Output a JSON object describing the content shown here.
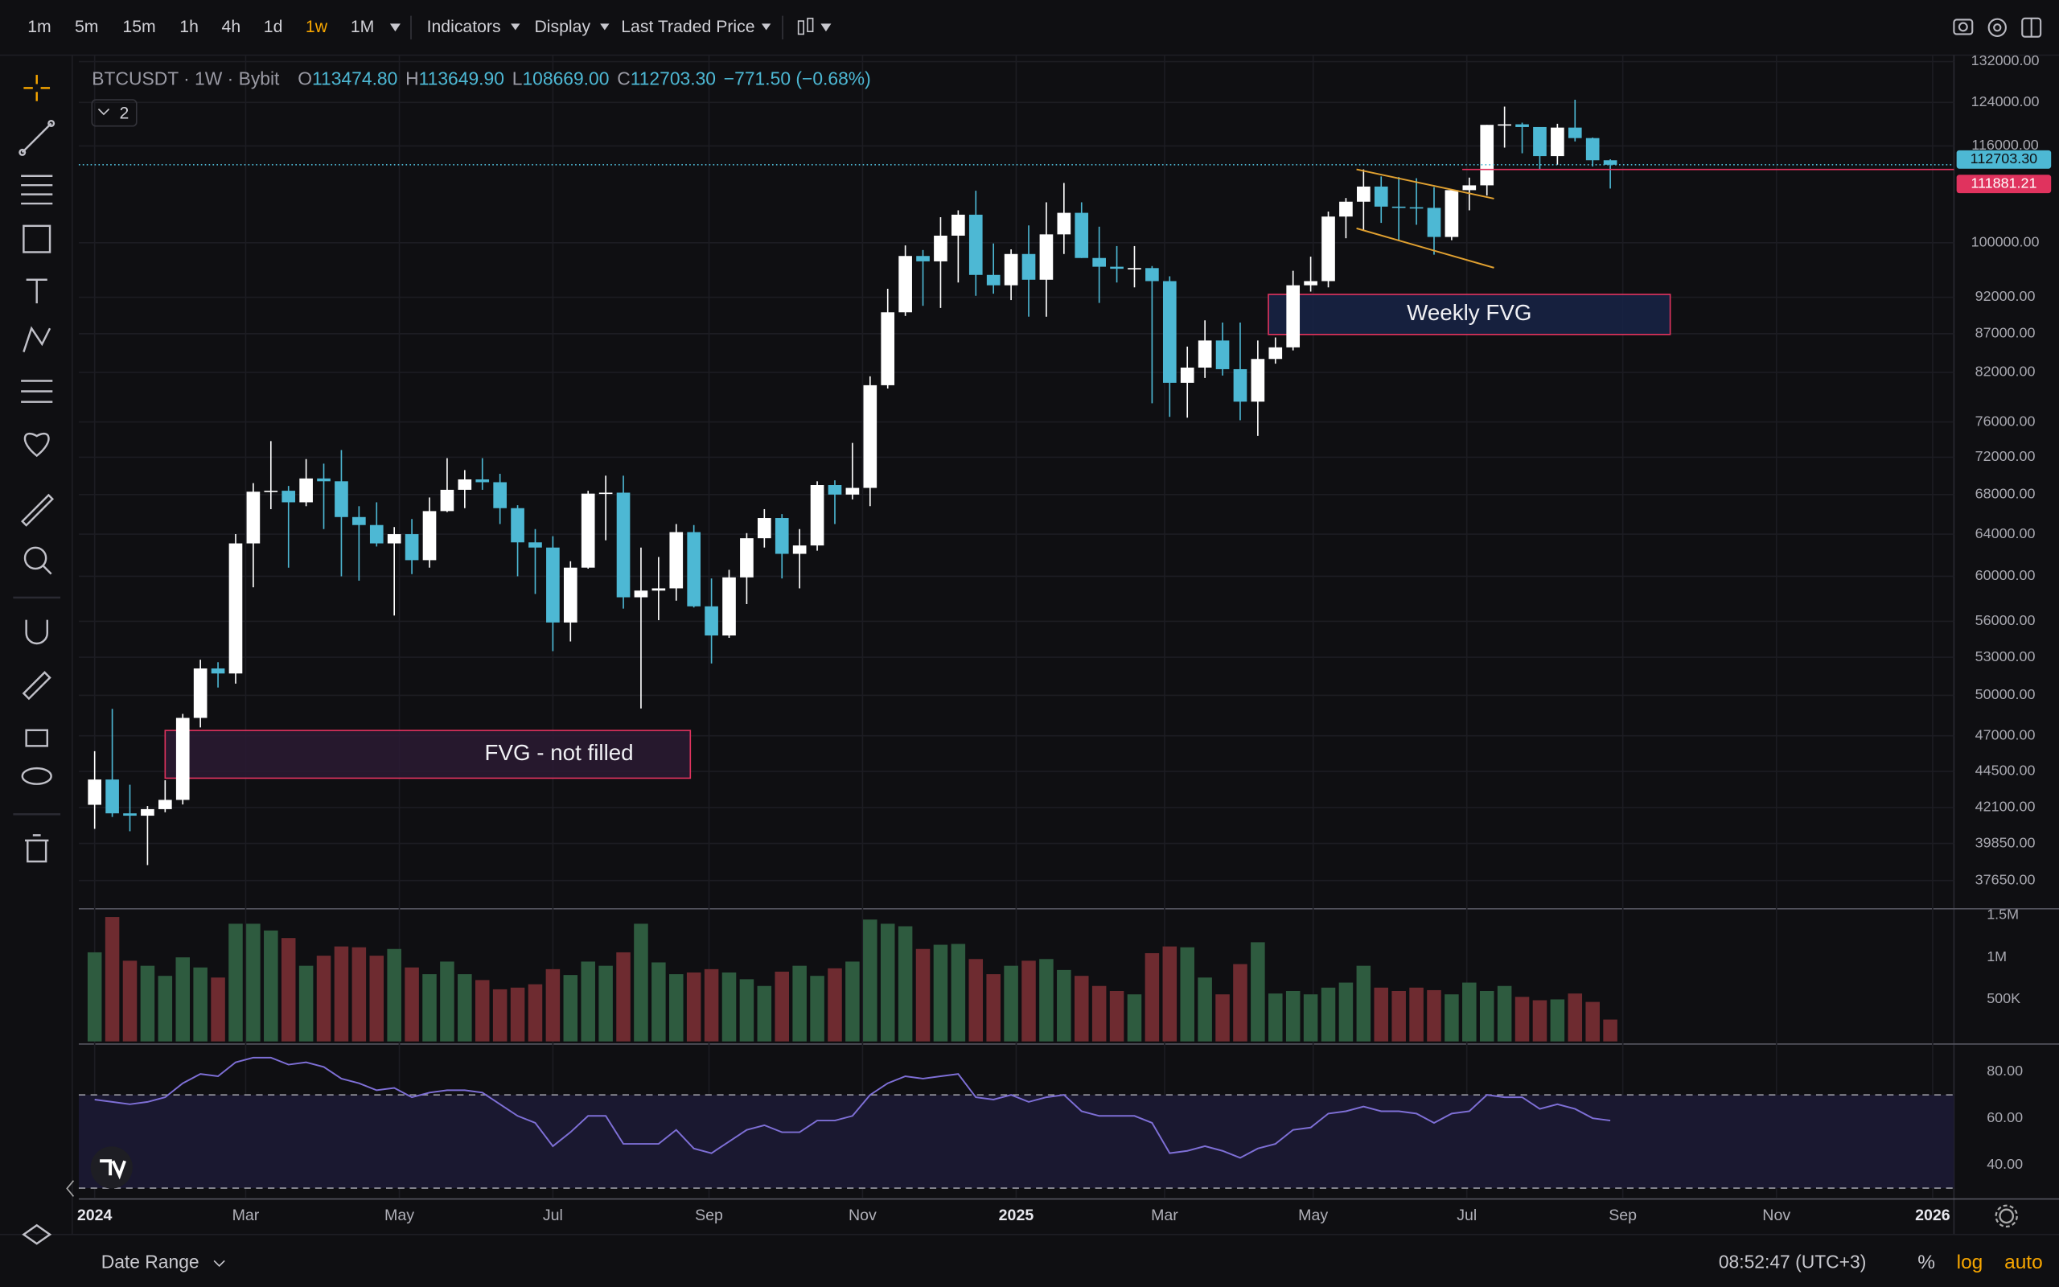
{
  "toolbar": {
    "timeframes": [
      "1m",
      "5m",
      "15m",
      "1h",
      "4h",
      "1d",
      "1w",
      "1M"
    ],
    "active": "1w",
    "active_color": "#f7a600",
    "menus": [
      "Indicators",
      "Display",
      "Last Traded Price"
    ]
  },
  "legend": {
    "title": "BTCUSDT · 1W · Bybit",
    "ohlc": [
      {
        "key": "O",
        "value": "113474.80"
      },
      {
        "key": "H",
        "value": "113649.90"
      },
      {
        "key": "L",
        "value": "108669.00"
      },
      {
        "key": "C",
        "value": "112703.30"
      }
    ],
    "change": "−771.50 (−0.68%)",
    "indicator_count": "2"
  },
  "footer": {
    "date_range": "Date Range",
    "clock": "08:52:47 (UTC+3)",
    "percent": "%",
    "log": "log",
    "auto": "auto"
  },
  "chart_data": [
    {
      "type": "candlestick",
      "log_scale": true,
      "grid": true,
      "up_color": "#ffffff",
      "down_color": "#4db8d4",
      "xlim": [
        -0.9,
        105.5
      ],
      "xticks": [
        {
          "value": 0,
          "label": "2024"
        },
        {
          "value": 8.57,
          "label": "Mar"
        },
        {
          "value": 17.29,
          "label": "May"
        },
        {
          "value": 26,
          "label": "Jul"
        },
        {
          "value": 34.86,
          "label": "Sep"
        },
        {
          "value": 43.57,
          "label": "Nov"
        },
        {
          "value": 52.29,
          "label": "2025"
        },
        {
          "value": 60.71,
          "label": "Mar"
        },
        {
          "value": 69.14,
          "label": "May"
        },
        {
          "value": 77.86,
          "label": "Jul"
        },
        {
          "value": 86.71,
          "label": "Sep"
        },
        {
          "value": 95.43,
          "label": "Nov"
        },
        {
          "value": 104.29,
          "label": "2026"
        }
      ],
      "ylim": [
        36200,
        133300
      ],
      "yticks": [
        {
          "value": 132000,
          "label": "132000.00"
        },
        {
          "value": 124000,
          "label": "124000.00"
        },
        {
          "value": 116000,
          "label": "116000.00"
        },
        {
          "value": 100000,
          "label": "100000.00"
        },
        {
          "value": 92000,
          "label": "92000.00"
        },
        {
          "value": 87000,
          "label": "87000.00"
        },
        {
          "value": 82000,
          "label": "82000.00"
        },
        {
          "value": 76000,
          "label": "76000.00"
        },
        {
          "value": 72000,
          "label": "72000.00"
        },
        {
          "value": 68000,
          "label": "68000.00"
        },
        {
          "value": 64000,
          "label": "64000.00"
        },
        {
          "value": 60000,
          "label": "60000.00"
        },
        {
          "value": 56000,
          "label": "56000.00"
        },
        {
          "value": 53000,
          "label": "53000.00"
        },
        {
          "value": 50000,
          "label": "50000.00"
        },
        {
          "value": 47000,
          "label": "47000.00"
        },
        {
          "value": 44500,
          "label": "44500.00"
        },
        {
          "value": 42100,
          "label": "42100.00"
        },
        {
          "value": 39850,
          "label": "39850.00"
        },
        {
          "value": 37650,
          "label": "37650.00"
        }
      ],
      "open": [
        42280,
        43950,
        41730,
        41580,
        42000,
        42600,
        48300,
        52100,
        51700,
        63100,
        68300,
        68400,
        67200,
        69700,
        69400,
        65700,
        64900,
        63100,
        64000,
        61500,
        66300,
        68500,
        69600,
        69300,
        66600,
        63200,
        62700,
        55900,
        60800,
        68100,
        68200,
        58100,
        58700,
        58900,
        64200,
        57300,
        54800,
        59900,
        63600,
        65600,
        62100,
        62900,
        69000,
        68000,
        68700,
        80400,
        89900,
        98000,
        97200,
        101100,
        104400,
        95200,
        93700,
        98300,
        94500,
        101300,
        104700,
        97700,
        96400,
        96100,
        96200,
        94300,
        80700,
        82600,
        86100,
        82400,
        78400,
        83700,
        85200,
        93700,
        94300,
        104100,
        106500,
        109000,
        105700,
        105600,
        105500,
        100900,
        108400,
        109200,
        119800,
        119900,
        119400,
        114200,
        119300,
        117400,
        113474.8
      ],
      "high": [
        45900,
        48970,
        43600,
        42200,
        43900,
        48600,
        52800,
        52600,
        64000,
        69200,
        73800,
        68900,
        71800,
        71300,
        72800,
        66800,
        67200,
        64700,
        65500,
        67700,
        71900,
        70600,
        71900,
        70200,
        66900,
        64500,
        63800,
        61400,
        68400,
        70000,
        70000,
        62700,
        61800,
        65000,
        64900,
        59800,
        60600,
        64100,
        66500,
        66000,
        64500,
        69400,
        69500,
        73600,
        81500,
        93200,
        99600,
        98900,
        104000,
        105100,
        108300,
        99900,
        99000,
        102700,
        106400,
        109600,
        106400,
        102500,
        99500,
        99500,
        96500,
        95000,
        85300,
        88800,
        88500,
        88500,
        86100,
        86500,
        95800,
        97900,
        104900,
        107100,
        111900,
        110700,
        110600,
        110400,
        108900,
        108500,
        110500,
        119800,
        123200,
        120200,
        119300,
        120000,
        124500,
        117500,
        113649.9
      ],
      "low": [
        40750,
        41500,
        40600,
        38550,
        41800,
        42300,
        47600,
        50600,
        50900,
        59000,
        66500,
        60800,
        66800,
        64500,
        60000,
        59600,
        62800,
        56500,
        60200,
        60800,
        66200,
        66600,
        68500,
        65000,
        60000,
        58400,
        53500,
        54300,
        60700,
        63400,
        57100,
        49000,
        56100,
        57800,
        57200,
        52500,
        54600,
        57500,
        62700,
        59800,
        58900,
        62400,
        65000,
        67500,
        66800,
        80000,
        89400,
        90800,
        90500,
        94100,
        92200,
        92500,
        91600,
        89300,
        89300,
        98300,
        97700,
        91200,
        94100,
        93400,
        78200,
        76600,
        76500,
        81300,
        81600,
        76200,
        74400,
        83100,
        84800,
        92800,
        93400,
        100700,
        102000,
        103100,
        100400,
        102800,
        98200,
        100400,
        105100,
        107500,
        115700,
        114700,
        111900,
        112700,
        116800,
        112400,
        108669
      ],
      "close": [
        43950,
        41730,
        41580,
        42000,
        42600,
        48300,
        52100,
        51700,
        63100,
        68300,
        68400,
        67200,
        69700,
        69400,
        65700,
        64900,
        63100,
        64000,
        61500,
        66300,
        68500,
        69600,
        69300,
        66600,
        63200,
        62700,
        55900,
        60800,
        68100,
        68200,
        58100,
        58700,
        58900,
        64200,
        57300,
        54800,
        59900,
        63600,
        65600,
        62100,
        62900,
        69000,
        68000,
        68700,
        80400,
        89900,
        98000,
        97200,
        101100,
        104400,
        95200,
        93700,
        98300,
        94500,
        101300,
        104700,
        97700,
        96400,
        96100,
        96200,
        94300,
        80700,
        82600,
        86100,
        82400,
        78400,
        83700,
        85200,
        93700,
        94300,
        104100,
        106500,
        109000,
        105700,
        105600,
        105500,
        100900,
        108400,
        109200,
        119800,
        119900,
        119400,
        114200,
        119300,
        117400,
        113474.8,
        112703.3
      ],
      "price_lines": [
        {
          "value": 112703.3,
          "label": "112703.30",
          "color": "#4db8d4",
          "dotted": true
        },
        {
          "value": 111881.21,
          "label": "111881.21",
          "color": "#e0335e",
          "dotted": false,
          "from": 77.6
        }
      ],
      "zones": [
        {
          "label": "FVG - not filled",
          "x": [
            4.0,
            33.8
          ],
          "y": [
            44040,
            47380
          ],
          "stroke": "#e0335e",
          "fill": "#2a1a33"
        },
        {
          "label": "Weekly FVG",
          "x": [
            66.6,
            89.4
          ],
          "y": [
            86900,
            92400
          ],
          "stroke": "#e0335e",
          "fill": "#172346"
        }
      ],
      "trendlines": [
        {
          "x": [
            71.6,
            79.4
          ],
          "y": [
            111900,
            107000
          ]
        },
        {
          "x": [
            71.6,
            79.4
          ],
          "y": [
            102240,
            96250
          ]
        }
      ],
      "trendline_color": "#e0a030"
    },
    {
      "type": "bar",
      "up_color": "#2e5b3f",
      "down_color": "#6e2b30",
      "ylim": [
        0,
        1562500
      ],
      "yticks": [
        {
          "value": 1500000,
          "label": "1.5M"
        },
        {
          "value": 1000000,
          "label": "1M"
        },
        {
          "value": 500000,
          "label": "500K"
        }
      ],
      "values": [
        1060000,
        1480000,
        960000,
        900000,
        780000,
        1000000,
        880000,
        760000,
        1400000,
        1400000,
        1320000,
        1230000,
        900000,
        1020000,
        1130000,
        1120000,
        1020000,
        1100000,
        880000,
        800000,
        950000,
        800000,
        730000,
        620000,
        640000,
        680000,
        860000,
        790000,
        950000,
        900000,
        1060000,
        1400000,
        940000,
        800000,
        820000,
        860000,
        820000,
        740000,
        660000,
        830000,
        900000,
        780000,
        870000,
        950000,
        1450000,
        1400000,
        1370000,
        1100000,
        1150000,
        1160000,
        980000,
        800000,
        900000,
        960000,
        980000,
        850000,
        780000,
        660000,
        600000,
        560000,
        1050000,
        1130000,
        1120000,
        760000,
        560000,
        920000,
        1180000,
        570000,
        600000,
        560000,
        640000,
        700000,
        900000,
        640000,
        600000,
        640000,
        610000,
        560000,
        700000,
        600000,
        660000,
        530000,
        490000,
        500000,
        570000,
        470000,
        260000
      ]
    },
    {
      "type": "line",
      "color": "#7e6fd6",
      "band_fill": "#1a1830",
      "ylim": [
        25.9,
        90.7
      ],
      "bands": [
        30,
        70
      ],
      "yticks": [
        {
          "value": 80,
          "label": "80.00"
        },
        {
          "value": 60,
          "label": "60.00"
        },
        {
          "value": 40,
          "label": "40.00"
        }
      ],
      "values": [
        68,
        67,
        66,
        67,
        69,
        75,
        79,
        78,
        84,
        86,
        86,
        83,
        84,
        82,
        77,
        75,
        72,
        73,
        69,
        71,
        72,
        72,
        71,
        66,
        61,
        58,
        48,
        54,
        61,
        61,
        49,
        49,
        49,
        55,
        47,
        45,
        50,
        55,
        57,
        54,
        54,
        59,
        59,
        61,
        70,
        75,
        78,
        77,
        78,
        79,
        69,
        68,
        70,
        67,
        69,
        70,
        63,
        61,
        61,
        61,
        58,
        45,
        46,
        48,
        46,
        43,
        47,
        49,
        55,
        56,
        62,
        63,
        65,
        63,
        63,
        62,
        58,
        62,
        63,
        70,
        69,
        69,
        64,
        66,
        64,
        60,
        59
      ]
    }
  ]
}
